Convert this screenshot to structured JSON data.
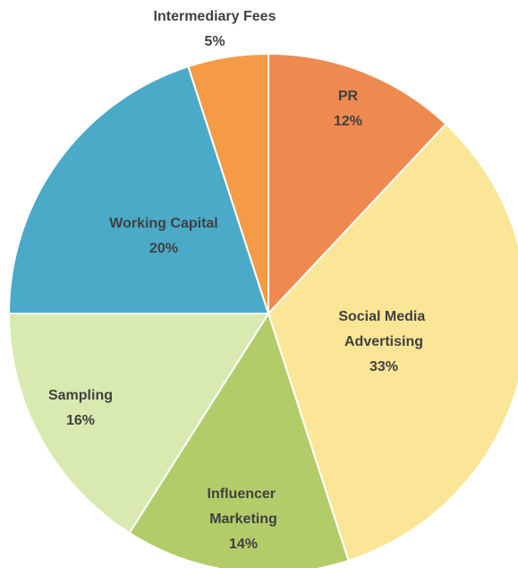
{
  "chart_data": {
    "type": "pie",
    "categories": [
      "PR",
      "Social Media Advertising",
      "Influencer Marketing",
      "Sampling",
      "Working Capital",
      "Intermediary Fees"
    ],
    "values": [
      12,
      33,
      14,
      16,
      20,
      5
    ],
    "value_labels": [
      "12%",
      "33%",
      "14%",
      "16%",
      "20%",
      "5%"
    ],
    "colors": [
      "#ee8a4f",
      "#fae696",
      "#b3cc6a",
      "#d8eab0",
      "#4aaac8",
      "#f59a45"
    ]
  }
}
